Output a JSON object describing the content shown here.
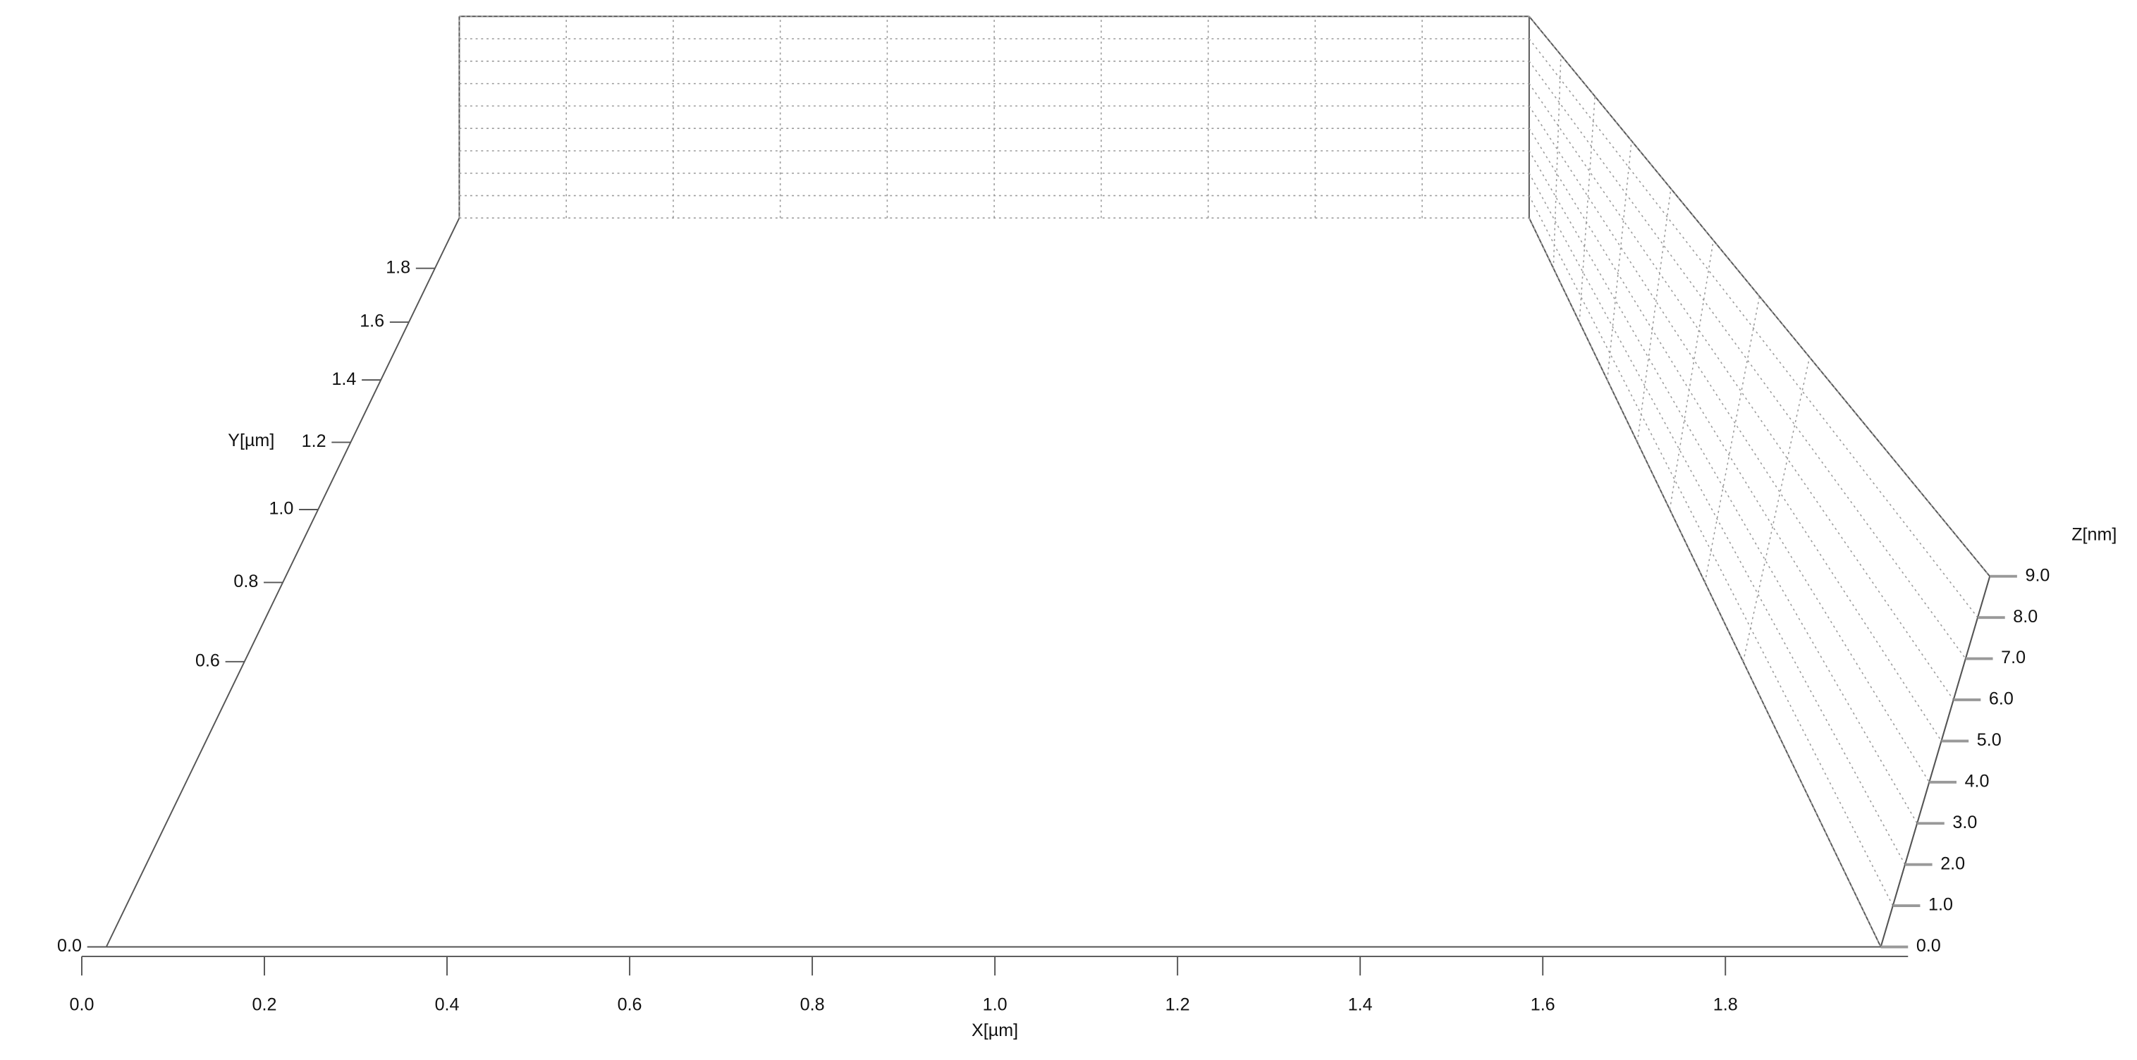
{
  "chart_data": {
    "type": "surface3d",
    "xlabel": "X[µm]",
    "ylabel": "Y[µm]",
    "zlabel": "Z[nm]",
    "xlim": [
      0,
      2
    ],
    "xticks": [
      {
        "value": 0,
        "label": "0.0"
      },
      0.2,
      0.4,
      0.6,
      0.8,
      {
        "value": 1,
        "label": "1.0"
      },
      1.2,
      1.4,
      1.6,
      1.8
    ],
    "ylim": [
      0,
      2
    ],
    "yticks": [
      {
        "value": 0,
        "label": "0.0"
      },
      0.6,
      0.8,
      {
        "value": 1,
        "label": "1.0"
      },
      1.2,
      1.4,
      1.6,
      1.8
    ],
    "zlim": [
      0,
      9
    ],
    "zticks": [
      {
        "value": 0,
        "label": "0.0"
      },
      {
        "value": 1,
        "label": "1.0"
      },
      {
        "value": 2,
        "label": "2.0"
      },
      {
        "value": 3,
        "label": "3.0"
      },
      {
        "value": 4,
        "label": "4.0"
      },
      {
        "value": 5,
        "label": "5.0"
      },
      {
        "value": 6,
        "label": "6.0"
      },
      {
        "value": 7,
        "label": "7.0"
      },
      {
        "value": 8,
        "label": "8.0"
      },
      {
        "value": 9,
        "label": "9.0"
      }
    ],
    "grid": true
  }
}
